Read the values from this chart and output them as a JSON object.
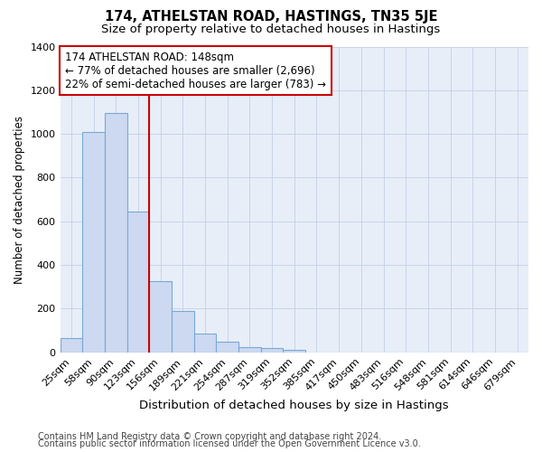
{
  "title": "174, ATHELSTAN ROAD, HASTINGS, TN35 5JE",
  "subtitle": "Size of property relative to detached houses in Hastings",
  "xlabel": "Distribution of detached houses by size in Hastings",
  "ylabel": "Number of detached properties",
  "footnote1": "Contains HM Land Registry data © Crown copyright and database right 2024.",
  "footnote2": "Contains public sector information licensed under the Open Government Licence v3.0.",
  "categories": [
    "25sqm",
    "58sqm",
    "90sqm",
    "123sqm",
    "156sqm",
    "189sqm",
    "221sqm",
    "254sqm",
    "287sqm",
    "319sqm",
    "352sqm",
    "385sqm",
    "417sqm",
    "450sqm",
    "483sqm",
    "516sqm",
    "548sqm",
    "581sqm",
    "614sqm",
    "646sqm",
    "679sqm"
  ],
  "values": [
    65,
    1010,
    1095,
    645,
    325,
    190,
    85,
    48,
    25,
    20,
    12,
    0,
    0,
    0,
    0,
    0,
    0,
    0,
    0,
    0,
    0
  ],
  "bar_color": "#ccd9f0",
  "bar_edge_color": "#7aa8d4",
  "vline_color": "#cc0000",
  "annotation_text": "174 ATHELSTAN ROAD: 148sqm\n← 77% of detached houses are smaller (2,696)\n22% of semi-detached houses are larger (783) →",
  "annotation_box_facecolor": "#ffffff",
  "annotation_box_edgecolor": "#cc0000",
  "ylim": [
    0,
    1400
  ],
  "yticks": [
    0,
    200,
    400,
    600,
    800,
    1000,
    1200,
    1400
  ],
  "grid_color": "#c8d4e8",
  "background_color": "#e8eef8",
  "title_fontsize": 10.5,
  "subtitle_fontsize": 9.5,
  "xlabel_fontsize": 9.5,
  "ylabel_fontsize": 8.5,
  "tick_fontsize": 8,
  "annot_fontsize": 8.5,
  "footer_fontsize": 7
}
